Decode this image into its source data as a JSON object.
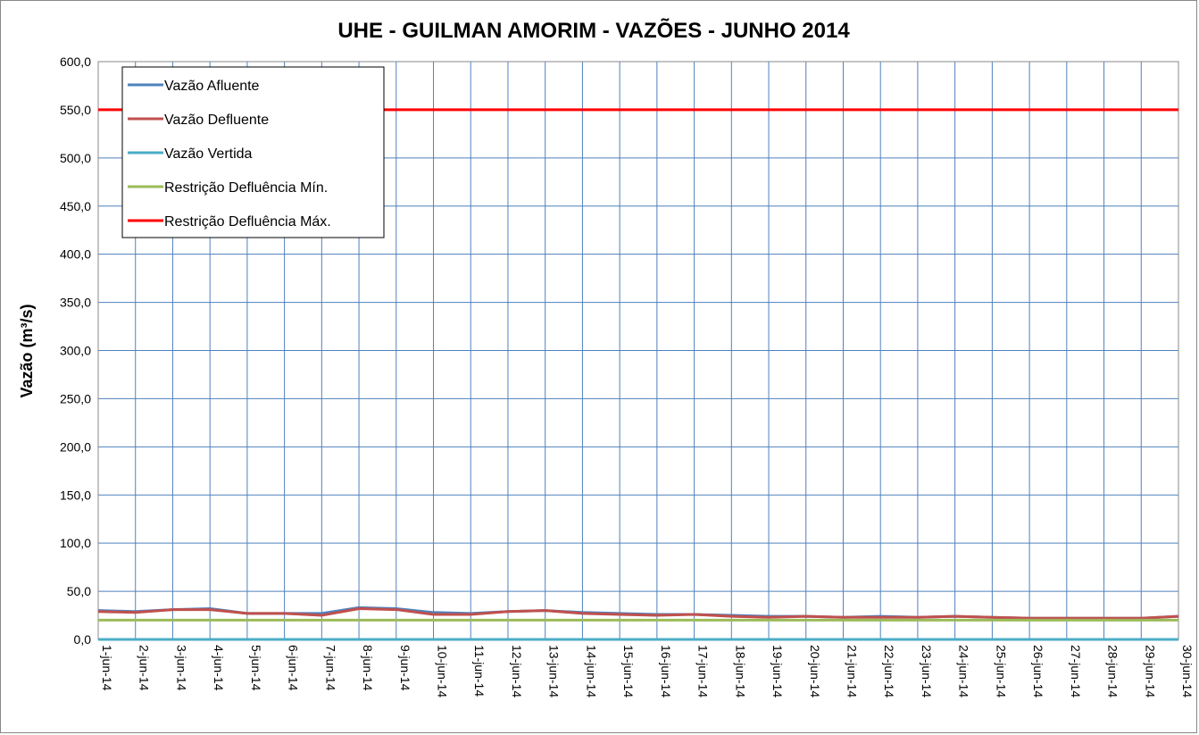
{
  "chart_data": {
    "type": "line",
    "title": "UHE - GUILMAN AMORIM - VAZÕES - JUNHO 2014",
    "y_label": "Vazão (m³/s)",
    "categories": [
      "1-jun-14",
      "2-jun-14",
      "3-jun-14",
      "4-jun-14",
      "5-jun-14",
      "6-jun-14",
      "7-jun-14",
      "8-jun-14",
      "9-jun-14",
      "10-jun-14",
      "11-jun-14",
      "12-jun-14",
      "13-jun-14",
      "14-jun-14",
      "15-jun-14",
      "16-jun-14",
      "17-jun-14",
      "18-jun-14",
      "19-jun-14",
      "20-jun-14",
      "21-jun-14",
      "22-jun-14",
      "23-jun-14",
      "24-jun-14",
      "25-jun-14",
      "26-jun-14",
      "27-jun-14",
      "28-jun-14",
      "29-jun-14",
      "30-jun-14"
    ],
    "series": [
      {
        "name": "Vazão Afluente",
        "color": "#4f81bd",
        "values": [
          30,
          29,
          31,
          32,
          27,
          27,
          27,
          33,
          32,
          28,
          27,
          29,
          30,
          28,
          27,
          26,
          26,
          25,
          24,
          24,
          23,
          24,
          23,
          24,
          23,
          22,
          22,
          22,
          22,
          24
        ]
      },
      {
        "name": "Vazão Defluente",
        "color": "#c0504d",
        "values": [
          29,
          28,
          31,
          31,
          27,
          27,
          25,
          32,
          31,
          26,
          26,
          29,
          30,
          27,
          26,
          25,
          26,
          24,
          23,
          24,
          23,
          23,
          23,
          24,
          23,
          22,
          22,
          22,
          22,
          24
        ]
      },
      {
        "name": "Vazão Vertida",
        "color": "#4bacc6",
        "values": [
          0,
          0,
          0,
          0,
          0,
          0,
          0,
          0,
          0,
          0,
          0,
          0,
          0,
          0,
          0,
          0,
          0,
          0,
          0,
          0,
          0,
          0,
          0,
          0,
          0,
          0,
          0,
          0,
          0,
          0
        ]
      },
      {
        "name": "Restrição Defluência Mín.",
        "color": "#9bbb59",
        "values": [
          20,
          20,
          20,
          20,
          20,
          20,
          20,
          20,
          20,
          20,
          20,
          20,
          20,
          20,
          20,
          20,
          20,
          20,
          20,
          20,
          20,
          20,
          20,
          20,
          20,
          20,
          20,
          20,
          20,
          20
        ]
      },
      {
        "name": "Restrição Defluência Máx.",
        "color": "#ff0000",
        "values": [
          550,
          550,
          550,
          550,
          550,
          550,
          550,
          550,
          550,
          550,
          550,
          550,
          550,
          550,
          550,
          550,
          550,
          550,
          550,
          550,
          550,
          550,
          550,
          550,
          550,
          550,
          550,
          550,
          550,
          550
        ]
      }
    ],
    "ylim": [
      0,
      600
    ],
    "yticks": [
      {
        "value": 0,
        "label": "0,0"
      },
      {
        "value": 50,
        "label": "50,0"
      },
      {
        "value": 100,
        "label": "100,0"
      },
      {
        "value": 150,
        "label": "150,0"
      },
      {
        "value": 200,
        "label": "200,0"
      },
      {
        "value": 250,
        "label": "250,0"
      },
      {
        "value": 300,
        "label": "300,0"
      },
      {
        "value": 350,
        "label": "350,0"
      },
      {
        "value": 400,
        "label": "400,0"
      },
      {
        "value": 450,
        "label": "450,0"
      },
      {
        "value": 500,
        "label": "500,0"
      },
      {
        "value": 550,
        "label": "550,0"
      },
      {
        "value": 600,
        "label": "600,0"
      }
    ],
    "grid": true,
    "legend": "top-left"
  }
}
